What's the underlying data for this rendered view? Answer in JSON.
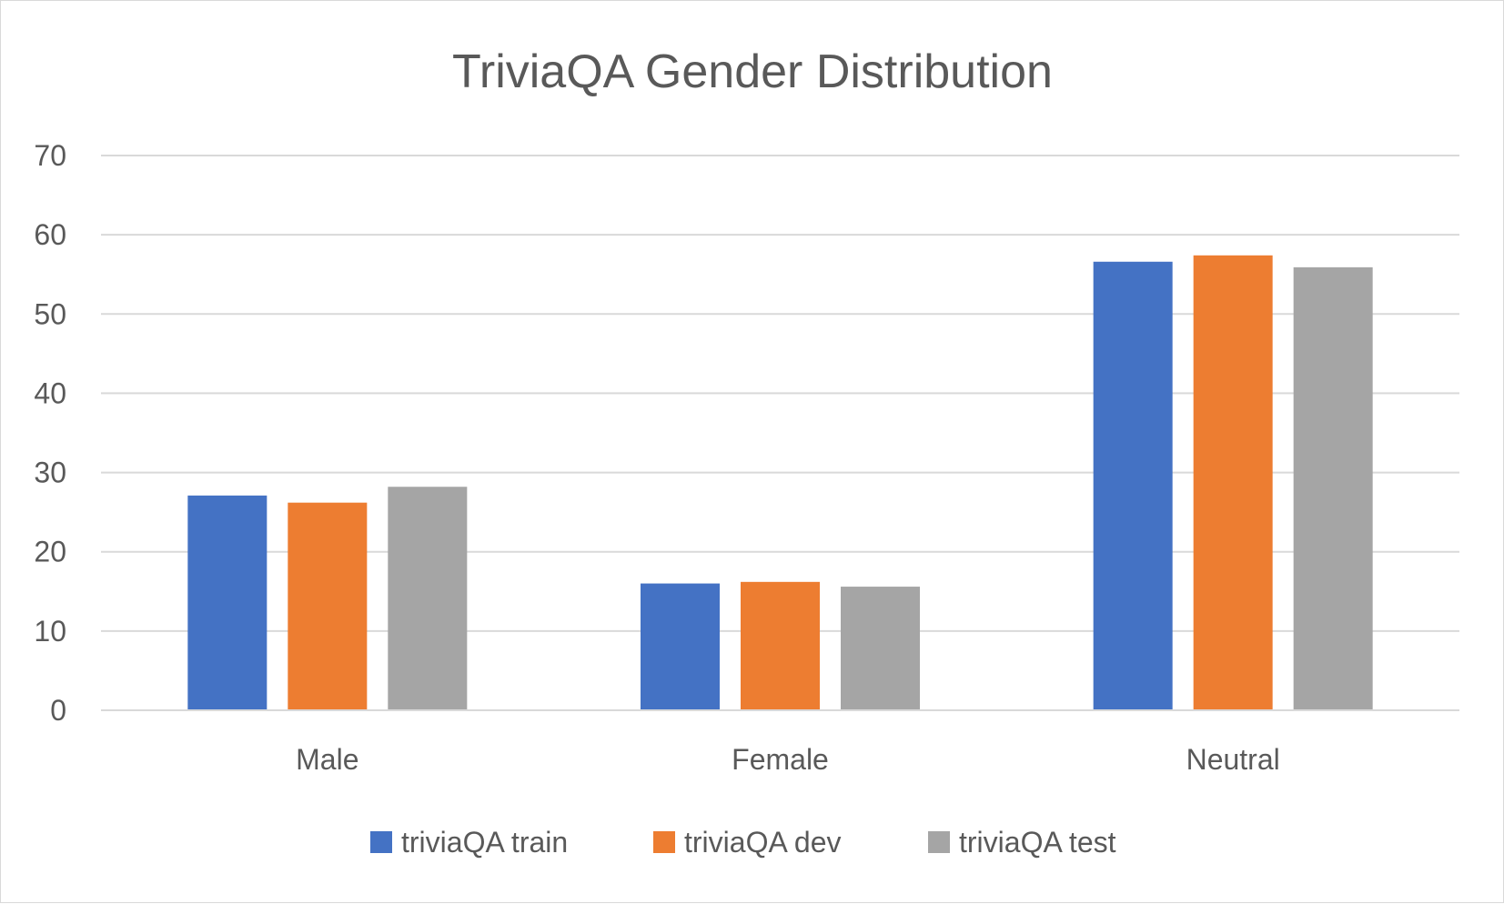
{
  "chart_data": {
    "type": "bar",
    "title": "TriviaQA Gender Distribution",
    "xlabel": "",
    "ylabel": "",
    "categories": [
      "Male",
      "Female",
      "Neutral"
    ],
    "series": [
      {
        "name": "triviaQA train",
        "color": "#4472c4",
        "values": [
          27.1,
          16.0,
          56.6
        ]
      },
      {
        "name": "triviaQA dev",
        "color": "#ed7d31",
        "values": [
          26.2,
          16.2,
          57.4
        ]
      },
      {
        "name": "triviaQA test",
        "color": "#a5a5a5",
        "values": [
          28.2,
          15.6,
          55.9
        ]
      }
    ],
    "ylim": [
      0,
      70
    ],
    "yticks": [
      "0",
      "10",
      "20",
      "30",
      "40",
      "50",
      "60",
      "70"
    ],
    "grid": true,
    "legend_position": "bottom"
  }
}
